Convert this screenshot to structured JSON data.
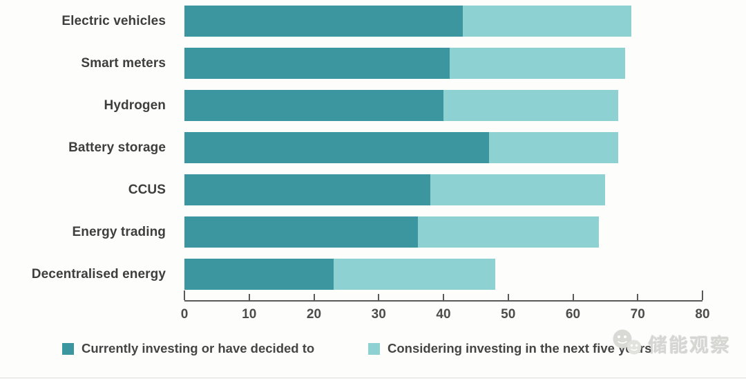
{
  "chart_data": {
    "type": "bar",
    "orientation": "horizontal",
    "stacked": true,
    "title": "",
    "xlabel": "",
    "ylabel": "",
    "categories": [
      "Electric vehicles",
      "Smart meters",
      "Hydrogen",
      "Battery storage",
      "CCUS",
      "Energy trading",
      "Decentralised energy"
    ],
    "series": [
      {
        "name": "Currently investing or have decided to",
        "color": "#3c96a0",
        "values": [
          43,
          41,
          40,
          47,
          38,
          36,
          23
        ]
      },
      {
        "name": "Considering investing in the next five years",
        "color": "#8dd1d3",
        "values": [
          26,
          27,
          27,
          20,
          27,
          28,
          25
        ]
      }
    ],
    "totals": [
      69,
      68,
      67,
      67,
      65,
      64,
      48
    ],
    "xlim": [
      0,
      80
    ],
    "xticks": [
      0,
      10,
      20,
      30,
      40,
      50,
      60,
      70,
      80
    ],
    "grid": false,
    "legend_position": "bottom",
    "axis_color": "#595959"
  },
  "watermark": {
    "text": "储能观察",
    "icon": "wechat-logo-icon",
    "color": "#d6d6d2"
  }
}
